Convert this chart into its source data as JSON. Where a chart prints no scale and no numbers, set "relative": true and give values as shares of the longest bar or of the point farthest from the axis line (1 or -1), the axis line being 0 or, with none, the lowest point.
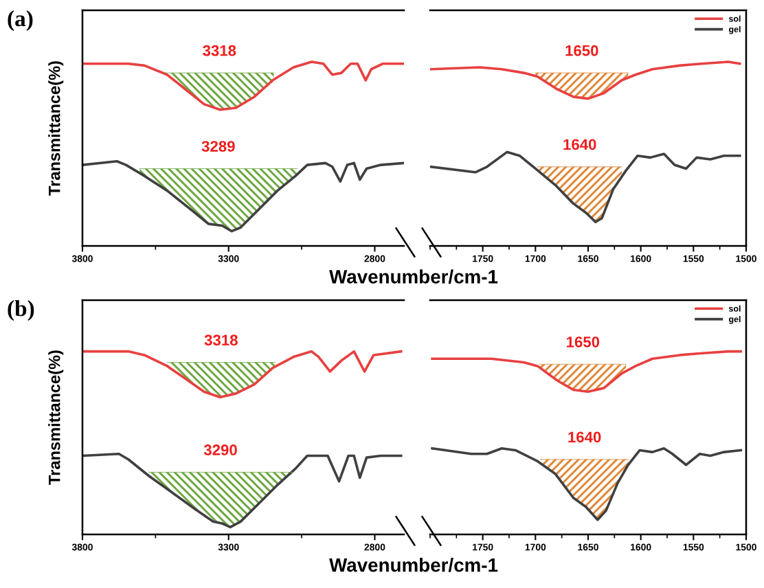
{
  "chart_data": [
    {
      "type": "line",
      "title": "(a)",
      "ylabel": "Transmittance(%)",
      "xlabel": "Wavenumber/cm-1",
      "relative": true,
      "xlim": [
        3800,
        2700
      ],
      "xticks": [
        3800,
        3300,
        2800
      ],
      "legend": false,
      "annotations": [
        "3318",
        "3289"
      ],
      "series": [
        {
          "color": "#e84040",
          "x": [
            3800,
            3643,
            3588,
            3510,
            3447,
            3384,
            3329,
            3275,
            3212,
            3149,
            3078,
            3016,
            2976,
            2945,
            2914,
            2882,
            2859,
            2831,
            2812,
            2772,
            2702
          ],
          "values": [
            0.99,
            0.99,
            0.98,
            0.93,
            0.85,
            0.77,
            0.74,
            0.75,
            0.81,
            0.9,
            0.97,
            1,
            0.99,
            0.93,
            0.94,
            0.99,
            0.99,
            0.9,
            0.96,
            0.99,
            0.99
          ]
        },
        {
          "color": "#404040",
          "x": [
            3800,
            3682,
            3651,
            3588,
            3510,
            3431,
            3369,
            3322,
            3290,
            3259,
            3196,
            3133,
            3071,
            3031,
            2969,
            2945,
            2918,
            2894,
            2871,
            2851,
            2828,
            2780,
            2702
          ],
          "values": [
            0.44,
            0.46,
            0.44,
            0.38,
            0.3,
            0.2,
            0.12,
            0.11,
            0.08,
            0.1,
            0.2,
            0.3,
            0.38,
            0.44,
            0.45,
            0.43,
            0.35,
            0.44,
            0.45,
            0.36,
            0.42,
            0.44,
            0.45
          ]
        },
        {
          "type": "area",
          "color": "#70a844",
          "x": [
            3518,
            3447,
            3384,
            3329,
            3275,
            3212,
            3145
          ],
          "values": [
            0.94,
            0.94,
            0.94,
            0.94,
            0.94,
            0.94,
            0.94
          ]
        },
        {
          "type": "area",
          "color": "#70a844",
          "x": [
            3604,
            3510,
            3431,
            3369,
            3322,
            3290,
            3259,
            3196,
            3133,
            3066
          ],
          "values": [
            0.42,
            0.42,
            0.42,
            0.42,
            0.42,
            0.42,
            0.42,
            0.42,
            0.42,
            0.42
          ]
        }
      ]
    },
    {
      "type": "line",
      "relative": true,
      "xlim": [
        1800,
        1500
      ],
      "xticks": [
        1750,
        1700,
        1650,
        1600,
        1550,
        1500
      ],
      "legend": "top right",
      "annotations": [
        "1650",
        "1640"
      ],
      "series": [
        {
          "name": "sol",
          "color": "#e84040",
          "x": [
            1799,
            1753,
            1732,
            1711,
            1698,
            1679,
            1664,
            1650,
            1635,
            1618,
            1605,
            1589,
            1563,
            1542,
            1517,
            1506
          ],
          "values": [
            0.96,
            0.97,
            0.96,
            0.94,
            0.92,
            0.85,
            0.81,
            0.8,
            0.83,
            0.9,
            0.93,
            0.96,
            0.98,
            0.99,
            1,
            0.99
          ]
        },
        {
          "name": "gel",
          "color": "#404040",
          "x": [
            1799,
            1757,
            1746,
            1727,
            1715,
            1700,
            1681,
            1664,
            1652,
            1643,
            1637,
            1626,
            1614,
            1603,
            1591,
            1578,
            1568,
            1557,
            1547,
            1534,
            1521,
            1506
          ],
          "values": [
            0.43,
            0.4,
            0.43,
            0.51,
            0.49,
            0.42,
            0.33,
            0.23,
            0.18,
            0.13,
            0.15,
            0.31,
            0.41,
            0.49,
            0.48,
            0.5,
            0.44,
            0.42,
            0.48,
            0.47,
            0.49,
            0.49
          ]
        },
        {
          "type": "area",
          "color": "#e08a3c",
          "x": [
            1700,
            1679,
            1664,
            1650,
            1635,
            1618,
            1612
          ],
          "values": [
            0.94,
            0.94,
            0.94,
            0.94,
            0.94,
            0.94,
            0.94
          ]
        },
        {
          "type": "area",
          "color": "#e08a3c",
          "x": [
            1698,
            1681,
            1664,
            1652,
            1643,
            1637,
            1626,
            1618
          ],
          "values": [
            0.43,
            0.43,
            0.43,
            0.43,
            0.43,
            0.43,
            0.43,
            0.43
          ]
        }
      ]
    },
    {
      "type": "line",
      "title": "(b)",
      "ylabel": "Transmittance(%)",
      "xlabel": "Wavenumber/cm-1",
      "relative": true,
      "xlim": [
        3800,
        2700
      ],
      "xticks": [
        3800,
        3300,
        2800
      ],
      "legend": false,
      "annotations": [
        "3318",
        "3290"
      ],
      "series": [
        {
          "color": "#e84040",
          "x": [
            3800,
            3643,
            3588,
            3510,
            3447,
            3384,
            3329,
            3275,
            3212,
            3149,
            3078,
            3016,
            2992,
            2953,
            2914,
            2871,
            2835,
            2804,
            2710
          ],
          "values": [
            1,
            1,
            0.98,
            0.92,
            0.85,
            0.78,
            0.75,
            0.77,
            0.82,
            0.91,
            0.97,
            1,
            0.97,
            0.89,
            0.95,
            1,
            0.89,
            0.98,
            1
          ]
        },
        {
          "color": "#404040",
          "x": [
            3800,
            3675,
            3643,
            3573,
            3494,
            3416,
            3353,
            3322,
            3294,
            3259,
            3196,
            3133,
            3071,
            3031,
            2961,
            2922,
            2890,
            2871,
            2851,
            2828,
            2780,
            2710
          ],
          "values": [
            0.43,
            0.44,
            0.41,
            0.32,
            0.23,
            0.14,
            0.07,
            0.06,
            0.04,
            0.07,
            0.17,
            0.27,
            0.36,
            0.43,
            0.43,
            0.29,
            0.43,
            0.43,
            0.31,
            0.42,
            0.43,
            0.43
          ]
        },
        {
          "type": "area",
          "color": "#70a844",
          "x": [
            3510,
            3447,
            3384,
            3329,
            3275,
            3212,
            3141
          ],
          "values": [
            0.94,
            0.94,
            0.94,
            0.94,
            0.94,
            0.94,
            0.94
          ]
        },
        {
          "type": "area",
          "color": "#70a844",
          "x": [
            3573,
            3494,
            3416,
            3353,
            3322,
            3294,
            3259,
            3196,
            3133,
            3082
          ],
          "values": [
            0.34,
            0.34,
            0.34,
            0.34,
            0.34,
            0.34,
            0.34,
            0.34,
            0.34,
            0.34
          ]
        }
      ]
    },
    {
      "type": "line",
      "relative": true,
      "xlim": [
        1800,
        1500
      ],
      "xticks": [
        1750,
        1700,
        1650,
        1600,
        1550,
        1500
      ],
      "legend": "top right",
      "annotations": [
        "1650",
        "1640"
      ],
      "series": [
        {
          "name": "sol",
          "color": "#e84040",
          "x": [
            1798,
            1742,
            1711,
            1698,
            1679,
            1664,
            1650,
            1635,
            1618,
            1605,
            1589,
            1563,
            1542,
            1517,
            1505
          ],
          "values": [
            0.96,
            0.96,
            0.94,
            0.92,
            0.84,
            0.79,
            0.78,
            0.8,
            0.88,
            0.92,
            0.96,
            0.98,
            0.99,
            1,
            1
          ]
        },
        {
          "name": "gel",
          "color": "#404040",
          "x": [
            1798,
            1761,
            1746,
            1732,
            1719,
            1698,
            1681,
            1664,
            1652,
            1641,
            1633,
            1622,
            1612,
            1601,
            1589,
            1578,
            1570,
            1557,
            1544,
            1534,
            1521,
            1505
          ],
          "values": [
            0.47,
            0.44,
            0.44,
            0.47,
            0.46,
            0.4,
            0.33,
            0.2,
            0.15,
            0.08,
            0.13,
            0.28,
            0.38,
            0.46,
            0.45,
            0.47,
            0.44,
            0.38,
            0.44,
            0.43,
            0.45,
            0.46
          ]
        },
        {
          "type": "area",
          "color": "#e08a3c",
          "x": [
            1696,
            1679,
            1664,
            1650,
            1635,
            1618,
            1614
          ],
          "values": [
            0.93,
            0.93,
            0.93,
            0.93,
            0.93,
            0.93,
            0.93
          ]
        },
        {
          "type": "area",
          "color": "#e08a3c",
          "x": [
            1695,
            1681,
            1664,
            1652,
            1641,
            1633,
            1622,
            1612
          ],
          "values": [
            0.41,
            0.41,
            0.41,
            0.41,
            0.41,
            0.41,
            0.41,
            0.41
          ]
        }
      ]
    }
  ]
}
